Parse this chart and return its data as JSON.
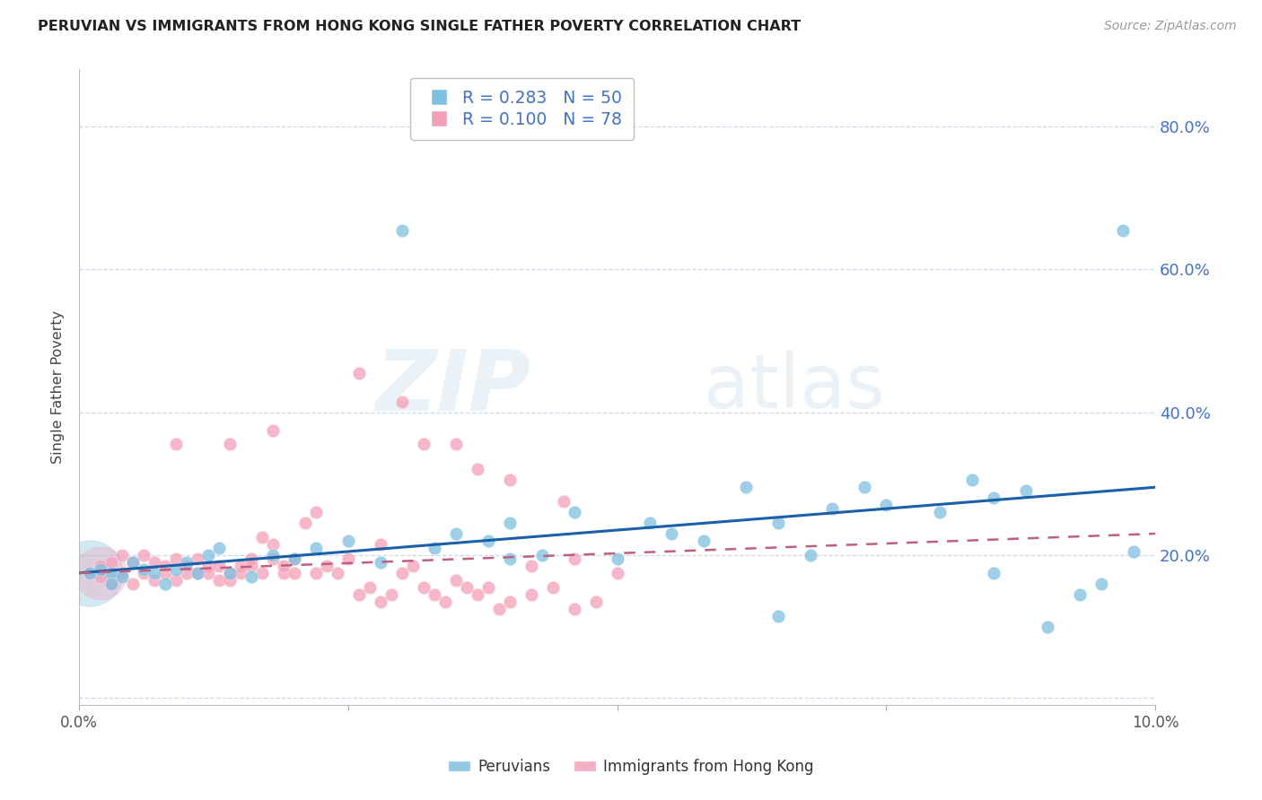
{
  "title": "PERUVIAN VS IMMIGRANTS FROM HONG KONG SINGLE FATHER POVERTY CORRELATION CHART",
  "source": "Source: ZipAtlas.com",
  "ylabel": "Single Father Poverty",
  "xlim": [
    0.0,
    0.1
  ],
  "ylim": [
    -0.01,
    0.88
  ],
  "yticks": [
    0.0,
    0.2,
    0.4,
    0.6,
    0.8
  ],
  "ytick_labels": [
    "",
    "20.0%",
    "40.0%",
    "60.0%",
    "80.0%"
  ],
  "blue_R": "0.283",
  "blue_N": "50",
  "pink_R": "0.100",
  "pink_N": "78",
  "blue_color": "#7fbfdf",
  "pink_color": "#f4a0b8",
  "blue_line_color": "#1a5fa8",
  "pink_line_color": "#c06080",
  "legend_blue_label": "Peruvians",
  "legend_pink_label": "Immigrants from Hong Kong",
  "watermark_zip": "ZIP",
  "watermark_atlas": "atlas",
  "blue_points_x": [
    0.001,
    0.002,
    0.003,
    0.003,
    0.004,
    0.005,
    0.006,
    0.007,
    0.008,
    0.009,
    0.01,
    0.011,
    0.012,
    0.013,
    0.014,
    0.016,
    0.018,
    0.02,
    0.022,
    0.025,
    0.028,
    0.03,
    0.033,
    0.035,
    0.038,
    0.04,
    0.043,
    0.046,
    0.05,
    0.053,
    0.055,
    0.058,
    0.062,
    0.065,
    0.068,
    0.07,
    0.073,
    0.075,
    0.08,
    0.083,
    0.085,
    0.088,
    0.09,
    0.093,
    0.095,
    0.097,
    0.04,
    0.065,
    0.085,
    0.098
  ],
  "blue_points_y": [
    0.175,
    0.18,
    0.175,
    0.16,
    0.17,
    0.19,
    0.18,
    0.175,
    0.16,
    0.18,
    0.19,
    0.175,
    0.2,
    0.21,
    0.175,
    0.17,
    0.2,
    0.195,
    0.21,
    0.22,
    0.19,
    0.655,
    0.21,
    0.23,
    0.22,
    0.245,
    0.2,
    0.26,
    0.195,
    0.245,
    0.23,
    0.22,
    0.295,
    0.245,
    0.2,
    0.265,
    0.295,
    0.27,
    0.26,
    0.305,
    0.28,
    0.29,
    0.1,
    0.145,
    0.16,
    0.655,
    0.195,
    0.115,
    0.175,
    0.205
  ],
  "pink_points_x": [
    0.001,
    0.002,
    0.002,
    0.003,
    0.003,
    0.004,
    0.004,
    0.005,
    0.005,
    0.006,
    0.006,
    0.007,
    0.007,
    0.008,
    0.008,
    0.009,
    0.009,
    0.01,
    0.01,
    0.011,
    0.011,
    0.012,
    0.012,
    0.013,
    0.013,
    0.014,
    0.014,
    0.015,
    0.015,
    0.016,
    0.016,
    0.017,
    0.017,
    0.018,
    0.018,
    0.019,
    0.019,
    0.02,
    0.02,
    0.021,
    0.022,
    0.023,
    0.024,
    0.025,
    0.026,
    0.027,
    0.028,
    0.029,
    0.03,
    0.031,
    0.032,
    0.033,
    0.034,
    0.035,
    0.036,
    0.037,
    0.038,
    0.039,
    0.04,
    0.042,
    0.044,
    0.046,
    0.048,
    0.05,
    0.009,
    0.014,
    0.018,
    0.022,
    0.026,
    0.03,
    0.035,
    0.04,
    0.045,
    0.028,
    0.032,
    0.037,
    0.042,
    0.046
  ],
  "pink_points_y": [
    0.175,
    0.17,
    0.185,
    0.16,
    0.19,
    0.175,
    0.2,
    0.16,
    0.19,
    0.175,
    0.2,
    0.165,
    0.19,
    0.175,
    0.185,
    0.165,
    0.195,
    0.175,
    0.185,
    0.175,
    0.195,
    0.185,
    0.175,
    0.165,
    0.185,
    0.175,
    0.165,
    0.185,
    0.175,
    0.195,
    0.185,
    0.175,
    0.225,
    0.195,
    0.215,
    0.175,
    0.185,
    0.195,
    0.175,
    0.245,
    0.175,
    0.185,
    0.175,
    0.195,
    0.145,
    0.155,
    0.135,
    0.145,
    0.175,
    0.185,
    0.155,
    0.145,
    0.135,
    0.165,
    0.155,
    0.145,
    0.155,
    0.125,
    0.135,
    0.145,
    0.155,
    0.125,
    0.135,
    0.175,
    0.355,
    0.355,
    0.375,
    0.26,
    0.455,
    0.415,
    0.355,
    0.305,
    0.275,
    0.215,
    0.355,
    0.32,
    0.185,
    0.195
  ]
}
